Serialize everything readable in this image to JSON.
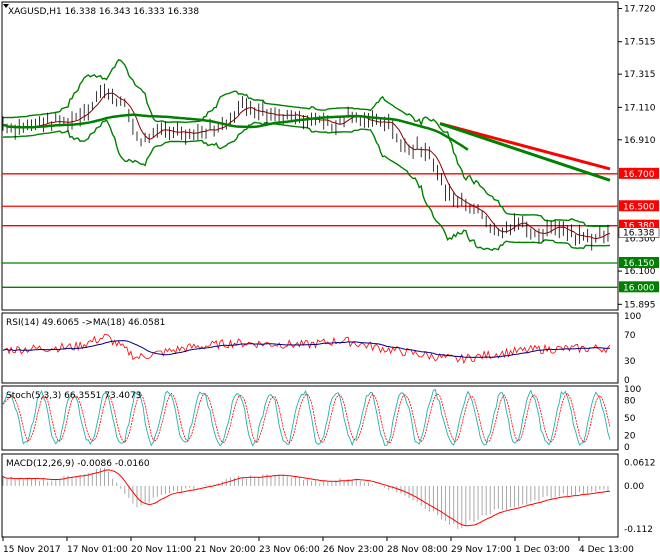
{
  "colors": {
    "background": "#ffffff",
    "frame": "#000000",
    "candles": "#000000",
    "ma_fast": "#8b0000",
    "ma_slow": "#008000",
    "bands": "#008000",
    "trend_red": "#ff0000",
    "trend_green": "#008000",
    "resistance": "#ff0000",
    "support": "#008000",
    "rsi_line": "#ff0000",
    "rsi_ma": "#000080",
    "stoch_main": "#20b2aa",
    "stoch_signal": "#ff0000",
    "macd_hist": "#a0a0a0",
    "macd_signal": "#ff0000"
  },
  "main_panel": {
    "title": "XAGUSD,H1  16.338 16.343 16.333 16.338",
    "axis_labels": [
      {
        "value": 17.72,
        "label": "17.720"
      },
      {
        "value": 17.515,
        "label": "17.515"
      },
      {
        "value": 17.315,
        "label": "17.315"
      },
      {
        "value": 17.11,
        "label": "17.110"
      },
      {
        "value": 16.91,
        "label": "16.910"
      },
      {
        "value": 16.1,
        "label": "16.100"
      },
      {
        "value": 15.895,
        "label": "15.895"
      }
    ],
    "levels": [
      {
        "value": 16.7,
        "label": "16.700",
        "kind": "resistance"
      },
      {
        "value": 16.5,
        "label": "16.500",
        "kind": "resistance"
      },
      {
        "value": 16.38,
        "label": "16.380",
        "kind": "resistance"
      },
      {
        "value": 16.15,
        "label": "16.150",
        "kind": "support"
      },
      {
        "value": 16.0,
        "label": "16.000",
        "kind": "support"
      }
    ],
    "current_price": {
      "value": 16.338,
      "label": "16.338"
    },
    "faint_label": {
      "value": 16.3,
      "label": "16.300"
    },
    "ylim": [
      15.86,
      17.76
    ]
  },
  "rsi_panel": {
    "title": "RSI(14) 49.6065  ->MA(18) 46.0581",
    "axis_labels": [
      {
        "value": 100,
        "label": "100"
      },
      {
        "value": 70,
        "label": "70"
      },
      {
        "value": 30,
        "label": "30"
      },
      {
        "value": 0,
        "label": "0"
      }
    ],
    "ylim": [
      0,
      100
    ]
  },
  "stoch_panel": {
    "title": "Stoch(5,3,3) 66.3551 73.4073",
    "axis_labels": [
      {
        "value": 100,
        "label": "100"
      },
      {
        "value": 80,
        "label": "80"
      },
      {
        "value": 50,
        "label": "50"
      },
      {
        "value": 20,
        "label": "20"
      },
      {
        "value": 0,
        "label": "0"
      }
    ],
    "ylim": [
      0,
      100
    ]
  },
  "macd_panel": {
    "title": "MACD(12,26,9) -0.0086 -0.0160",
    "axis_labels": [
      {
        "value": 0.0612,
        "label": "0.0612"
      },
      {
        "value": 0.0,
        "label": "0.00"
      },
      {
        "value": -0.112,
        "label": "-0.112"
      }
    ],
    "ylim": [
      -0.125,
      0.075
    ]
  },
  "x_axis_labels": [
    "15 Nov 2017",
    "17 Nov 01:00",
    "20 Nov 11:00",
    "21 Nov 20:00",
    "23 Nov 06:00",
    "26 Nov 23:00",
    "28 Nov 08:00",
    "29 Nov 17:00",
    "1 Dec 03:00",
    "4 Dec 13:00"
  ],
  "chart_data": {
    "type": "line",
    "title": "XAGUSD,H1",
    "x": [
      "15 Nov 2017",
      "17 Nov 01:00",
      "20 Nov 11:00",
      "21 Nov 20:00",
      "23 Nov 06:00",
      "26 Nov 23:00",
      "28 Nov 08:00",
      "29 Nov 17:00",
      "1 Dec 03:00",
      "4 Dec 13:00"
    ],
    "series": [
      {
        "name": "XAGUSD,H1",
        "values": [
          17.0,
          17.22,
          16.95,
          17.05,
          17.04,
          17.05,
          16.95,
          16.55,
          16.38,
          16.34
        ]
      }
    ],
    "ylim": [
      15.895,
      17.72
    ]
  }
}
